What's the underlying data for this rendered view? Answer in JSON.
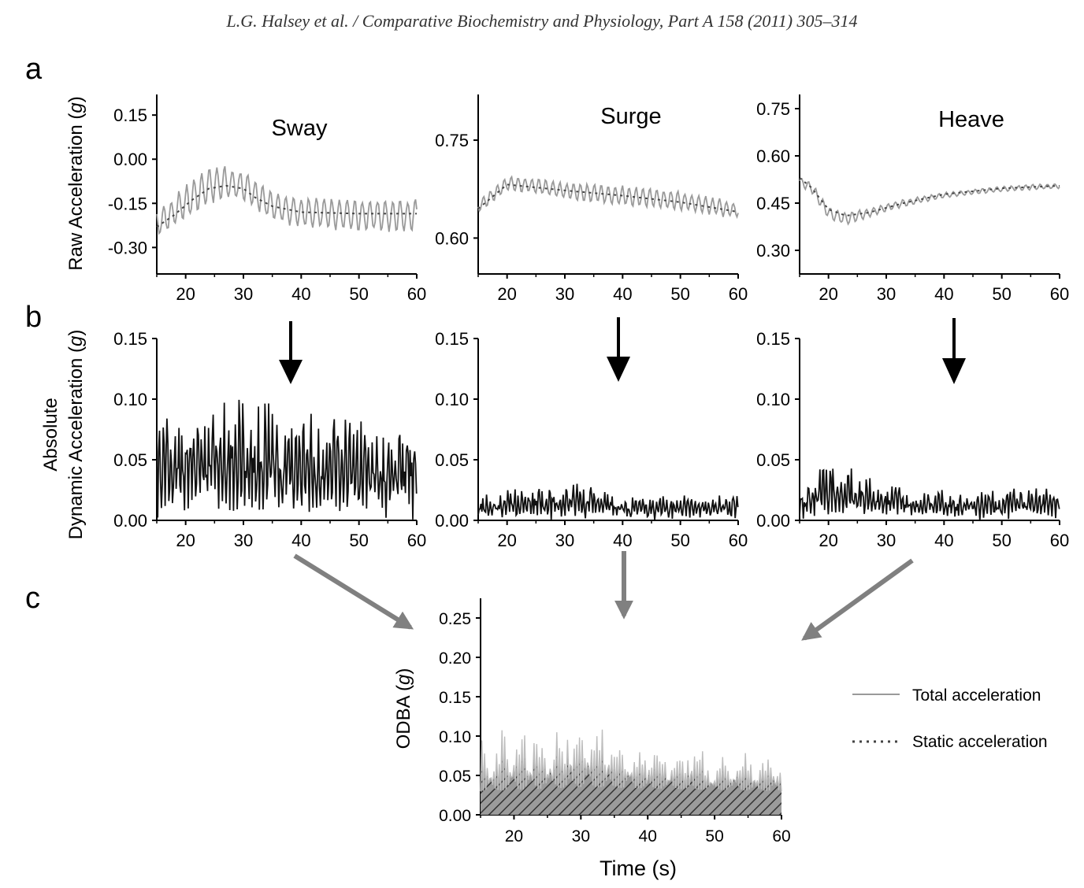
{
  "header": "L.G. Halsey et al. / Comparative Biochemistry and Physiology, Part A 158 (2011) 305–314",
  "panel_letters": {
    "a": "a",
    "b": "b",
    "c": "c"
  },
  "y_labels": {
    "row_a": [
      "Raw Acceleration (",
      "g",
      ")"
    ],
    "row_b_line1": "Absolute",
    "row_b_line2": [
      "Dynamic Acceleration (",
      "g",
      ")"
    ],
    "row_c": [
      "ODBA (",
      "g",
      ")"
    ]
  },
  "x_label": "Time (s)",
  "legend": {
    "total": "Total acceleration",
    "static": "Static acceleration"
  },
  "colors": {
    "total": "#9a9a9a",
    "static": "#444444",
    "dynamic": "#111111",
    "arrow_black": "#000000",
    "arrow_gray": "#808080"
  },
  "chart_data": [
    {
      "id": "a-sway",
      "type": "line",
      "title": "Sway",
      "xlim": [
        15,
        60
      ],
      "ylim": [
        -0.39,
        0.22
      ],
      "xticks": [
        20,
        30,
        40,
        50,
        60
      ],
      "yticks": [
        0.15,
        0.0,
        -0.15,
        -0.3
      ],
      "ytick_labels": [
        "0.15",
        "0.00",
        "-0.15",
        "-0.30"
      ],
      "series": [
        {
          "name": "Total acceleration",
          "style": "solid",
          "mode": "osc",
          "x_range": [
            15,
            60
          ],
          "step": 0.2,
          "base": [
            [
              15,
              -0.22
            ],
            [
              18,
              -0.18
            ],
            [
              21,
              -0.13
            ],
            [
              24,
              -0.09
            ],
            [
              27,
              -0.08
            ],
            [
              30,
              -0.09
            ],
            [
              32,
              -0.12
            ],
            [
              35,
              -0.16
            ],
            [
              40,
              -0.18
            ],
            [
              50,
              -0.19
            ],
            [
              60,
              -0.19
            ]
          ],
          "amp": [
            [
              15,
              0.04
            ],
            [
              20,
              0.06
            ],
            [
              24,
              0.06
            ],
            [
              30,
              0.05
            ],
            [
              33,
              0.05
            ],
            [
              40,
              0.05
            ],
            [
              50,
              0.055
            ],
            [
              60,
              0.055
            ]
          ],
          "period": 1.32,
          "seed": 3
        },
        {
          "name": "Static acceleration",
          "style": "dotted",
          "points": [
            [
              15,
              -0.23
            ],
            [
              18,
              -0.19
            ],
            [
              21,
              -0.14
            ],
            [
              24,
              -0.1
            ],
            [
              27,
              -0.09
            ],
            [
              30,
              -0.1
            ],
            [
              32,
              -0.13
            ],
            [
              35,
              -0.16
            ],
            [
              40,
              -0.18
            ],
            [
              50,
              -0.185
            ],
            [
              60,
              -0.185
            ]
          ]
        }
      ]
    },
    {
      "id": "a-surge",
      "type": "line",
      "title": "Surge",
      "xlim": [
        15,
        60
      ],
      "ylim": [
        0.545,
        0.82
      ],
      "xticks": [
        20,
        30,
        40,
        50,
        60
      ],
      "yticks": [
        0.75,
        0.6
      ],
      "ytick_labels": [
        "0.75",
        "0.60"
      ],
      "series": [
        {
          "name": "Total acceleration",
          "style": "solid",
          "mode": "osc",
          "x_range": [
            15,
            60
          ],
          "step": 0.2,
          "base": [
            [
              15,
              0.648
            ],
            [
              20,
              0.683
            ],
            [
              25,
              0.68
            ],
            [
              30,
              0.672
            ],
            [
              40,
              0.665
            ],
            [
              50,
              0.657
            ],
            [
              60,
              0.642
            ]
          ],
          "amp": [
            [
              15,
              0.01
            ],
            [
              25,
              0.012
            ],
            [
              40,
              0.015
            ],
            [
              50,
              0.015
            ],
            [
              60,
              0.012
            ]
          ],
          "period": 1.2,
          "seed": 7
        },
        {
          "name": "Static acceleration",
          "style": "dotted",
          "points": [
            [
              15,
              0.645
            ],
            [
              20,
              0.682
            ],
            [
              30,
              0.673
            ],
            [
              40,
              0.665
            ],
            [
              50,
              0.655
            ],
            [
              60,
              0.64
            ]
          ]
        }
      ]
    },
    {
      "id": "a-heave",
      "type": "line",
      "title": "Heave",
      "xlim": [
        15,
        60
      ],
      "ylim": [
        0.225,
        0.795
      ],
      "xticks": [
        20,
        30,
        40,
        50,
        60
      ],
      "yticks": [
        0.75,
        0.6,
        0.45,
        0.3
      ],
      "ytick_labels": [
        "0.75",
        "0.60",
        "0.45",
        "0.30"
      ],
      "series": [
        {
          "name": "Total acceleration",
          "style": "solid",
          "mode": "osc",
          "x_range": [
            15,
            60
          ],
          "step": 0.2,
          "base": [
            [
              15,
              0.52
            ],
            [
              17,
              0.5
            ],
            [
              20,
              0.42
            ],
            [
              23,
              0.4
            ],
            [
              27,
              0.42
            ],
            [
              33,
              0.45
            ],
            [
              40,
              0.475
            ],
            [
              50,
              0.495
            ],
            [
              60,
              0.505
            ]
          ],
          "amp": [
            [
              15,
              0.015
            ],
            [
              22,
              0.02
            ],
            [
              30,
              0.012
            ],
            [
              40,
              0.008
            ],
            [
              60,
              0.008
            ]
          ],
          "period": 1.25,
          "seed": 11
        },
        {
          "name": "Static acceleration",
          "style": "dotted",
          "points": [
            [
              15,
              0.53
            ],
            [
              17,
              0.5
            ],
            [
              20,
              0.43
            ],
            [
              23,
              0.41
            ],
            [
              27,
              0.42
            ],
            [
              33,
              0.45
            ],
            [
              40,
              0.478
            ],
            [
              50,
              0.497
            ],
            [
              60,
              0.505
            ]
          ]
        }
      ]
    },
    {
      "id": "b-sway",
      "type": "line",
      "title": "",
      "xlim": [
        15,
        60
      ],
      "ylim": [
        0,
        0.15
      ],
      "xticks": [
        20,
        30,
        40,
        50,
        60
      ],
      "yticks": [
        0.15,
        0.1,
        0.05,
        0.0
      ],
      "ytick_labels": [
        "0.15",
        "0.10",
        "0.05",
        "0.00"
      ],
      "series": [
        {
          "name": "Absolute dynamic acceleration",
          "style": "solid",
          "mode": "abs",
          "x_range": [
            15,
            60
          ],
          "step": 0.16,
          "amp": [
            [
              15,
              0.075
            ],
            [
              25,
              0.085
            ],
            [
              32,
              0.09
            ],
            [
              40,
              0.08
            ],
            [
              50,
              0.07
            ],
            [
              60,
              0.07
            ]
          ],
          "period": 1.32,
          "noise": 0.012,
          "seed": 5
        }
      ]
    },
    {
      "id": "b-surge",
      "type": "line",
      "title": "",
      "xlim": [
        15,
        60
      ],
      "ylim": [
        0,
        0.15
      ],
      "xticks": [
        20,
        30,
        40,
        50,
        60
      ],
      "yticks": [
        0.15,
        0.1,
        0.05,
        0.0
      ],
      "ytick_labels": [
        "0.15",
        "0.10",
        "0.05",
        "0.00"
      ],
      "series": [
        {
          "name": "Absolute dynamic acceleration",
          "style": "solid",
          "mode": "abs",
          "x_range": [
            15,
            60
          ],
          "step": 0.16,
          "amp": [
            [
              15,
              0.014
            ],
            [
              20,
              0.022
            ],
            [
              35,
              0.024
            ],
            [
              40,
              0.016
            ],
            [
              50,
              0.016
            ],
            [
              60,
              0.018
            ]
          ],
          "period": 1.2,
          "noise": 0.006,
          "seed": 9
        }
      ]
    },
    {
      "id": "b-heave",
      "type": "line",
      "title": "",
      "xlim": [
        15,
        60
      ],
      "ylim": [
        0,
        0.15
      ],
      "xticks": [
        20,
        30,
        40,
        50,
        60
      ],
      "yticks": [
        0.15,
        0.1,
        0.05,
        0.0
      ],
      "ytick_labels": [
        "0.15",
        "0.10",
        "0.05",
        "0.00"
      ],
      "series": [
        {
          "name": "Absolute dynamic acceleration",
          "style": "solid",
          "mode": "abs",
          "x_range": [
            15,
            60
          ],
          "step": 0.16,
          "amp": [
            [
              15,
              0.022
            ],
            [
              20,
              0.05
            ],
            [
              22,
              0.045
            ],
            [
              28,
              0.03
            ],
            [
              40,
              0.018
            ],
            [
              50,
              0.022
            ],
            [
              60,
              0.022
            ]
          ],
          "period": 1.25,
          "noise": 0.006,
          "seed": 13
        }
      ]
    },
    {
      "id": "c-odba",
      "type": "area",
      "title": "",
      "xlim": [
        15,
        60
      ],
      "ylim": [
        0,
        0.275
      ],
      "xticks": [
        20,
        30,
        40,
        50,
        60
      ],
      "yticks": [
        0.25,
        0.2,
        0.15,
        0.1,
        0.05,
        0.0
      ],
      "ytick_labels": [
        "0.25",
        "0.20",
        "0.15",
        "0.10",
        "0.05",
        "0.00"
      ],
      "series": [
        {
          "name": "ODBA",
          "style": "solid",
          "mode": "odba",
          "x_range": [
            15,
            60
          ],
          "step": 0.2,
          "base": [
            [
              15,
              0.03
            ],
            [
              30,
              0.035
            ],
            [
              60,
              0.03
            ]
          ],
          "amp": [
            [
              15,
              0.07
            ],
            [
              20,
              0.08
            ],
            [
              30,
              0.095
            ],
            [
              40,
              0.06
            ],
            [
              50,
              0.05
            ],
            [
              60,
              0.05
            ]
          ],
          "period": 0.75,
          "seed": 17
        }
      ]
    }
  ]
}
